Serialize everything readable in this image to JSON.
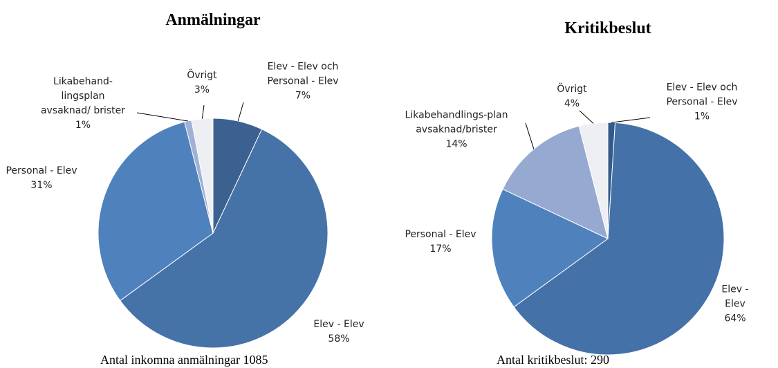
{
  "chart_data": [
    {
      "type": "pie",
      "title": "Anmälningar",
      "caption": "Antal inkomna anmälningar 1085",
      "categories": [
        "Elev - Elev och\nPersonal - Elev",
        "Elev - Elev",
        "Personal - Elev",
        "Likabehand-\nlingsplan\navsaknad/ brister",
        "Övrigt"
      ],
      "values": [
        7,
        58,
        31,
        1,
        3
      ],
      "value_labels": [
        "7%",
        "58%",
        "31%",
        "1%",
        "3%"
      ],
      "colors": [
        "#3b6190",
        "#4573a8",
        "#4f81bd",
        "#9fb2d6",
        "#eeeff3"
      ]
    },
    {
      "type": "pie",
      "title": "Kritikbeslut",
      "caption": "Antal kritikbeslut: 290",
      "categories": [
        "Elev - Elev och\nPersonal - Elev",
        "Elev - Elev",
        "Personal - Elev",
        "Likabehandlings-plan\navsaknad/brister",
        "Övrigt"
      ],
      "values": [
        1,
        64,
        17,
        14,
        4
      ],
      "value_labels": [
        "1%",
        "64%",
        "17%",
        "14%",
        "4%"
      ],
      "colors": [
        "#35598a",
        "#4472a8",
        "#4f81bd",
        "#95a9d1",
        "#eeeff3"
      ]
    }
  ]
}
